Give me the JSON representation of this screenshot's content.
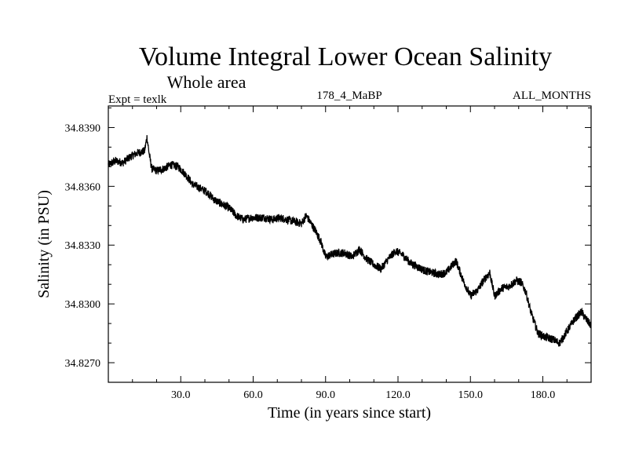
{
  "chart_data": {
    "type": "line",
    "title": "Volume Integral Lower Ocean Salinity",
    "subtitle": "Whole area",
    "experiment_label": "Expt = texlk",
    "run_label": "178_4_MaBP",
    "period_label": "ALL_MONTHS",
    "xlabel": "Time (in years since start)",
    "ylabel": "Salinity (in PSU)",
    "xlim": [
      0,
      200
    ],
    "ylim": [
      34.826,
      34.8401
    ],
    "xticks": [
      30,
      60,
      90,
      120,
      150,
      180
    ],
    "xtick_labels": [
      "30.0",
      "60.0",
      "90.0",
      "120.0",
      "150.0",
      "180.0"
    ],
    "yticks": [
      34.827,
      34.83,
      34.833,
      34.836,
      34.839
    ],
    "ytick_labels": [
      "34.8270",
      "34.8300",
      "34.8330",
      "34.8360",
      "34.8390"
    ],
    "grid": false,
    "series": [
      {
        "name": "Salinity",
        "color": "#000000",
        "x": [
          0,
          3,
          6,
          9,
          12,
          15,
          16,
          17,
          18,
          20,
          23,
          26,
          29,
          32,
          35,
          38,
          41,
          44,
          47,
          50,
          53,
          56,
          59,
          62,
          65,
          68,
          71,
          74,
          77,
          80,
          82,
          84,
          86,
          88,
          90,
          92,
          95,
          98,
          101,
          104,
          107,
          110,
          113,
          116,
          119,
          122,
          125,
          128,
          131,
          134,
          137,
          140,
          142,
          144,
          147,
          150,
          153,
          156,
          158,
          160,
          163,
          166,
          169,
          171,
          173,
          175,
          178,
          181,
          184,
          187,
          190,
          193,
          196,
          198,
          200
        ],
        "values": [
          34.8371,
          34.8373,
          34.8372,
          34.8375,
          34.8377,
          34.8378,
          34.8385,
          34.8376,
          34.8369,
          34.8368,
          34.8369,
          34.8371,
          34.837,
          34.8366,
          34.8361,
          34.8359,
          34.8357,
          34.8353,
          34.8351,
          34.8349,
          34.8345,
          34.8343,
          34.8344,
          34.8344,
          34.8344,
          34.8343,
          34.8344,
          34.8343,
          34.8342,
          34.8341,
          34.8345,
          34.8341,
          34.8337,
          34.8332,
          34.8324,
          34.8325,
          34.8326,
          34.8326,
          34.8324,
          34.8328,
          34.8323,
          34.832,
          34.8318,
          34.8323,
          34.8327,
          34.8325,
          34.8321,
          34.8319,
          34.8317,
          34.8316,
          34.8315,
          34.8316,
          34.8319,
          34.8322,
          34.8312,
          34.8304,
          34.8307,
          34.8313,
          34.8316,
          34.8304,
          34.8308,
          34.8309,
          34.8312,
          34.8311,
          34.8306,
          34.8296,
          34.8285,
          34.8283,
          34.8282,
          34.828,
          34.8286,
          34.8292,
          34.8296,
          34.8292,
          34.8289
        ]
      }
    ]
  }
}
